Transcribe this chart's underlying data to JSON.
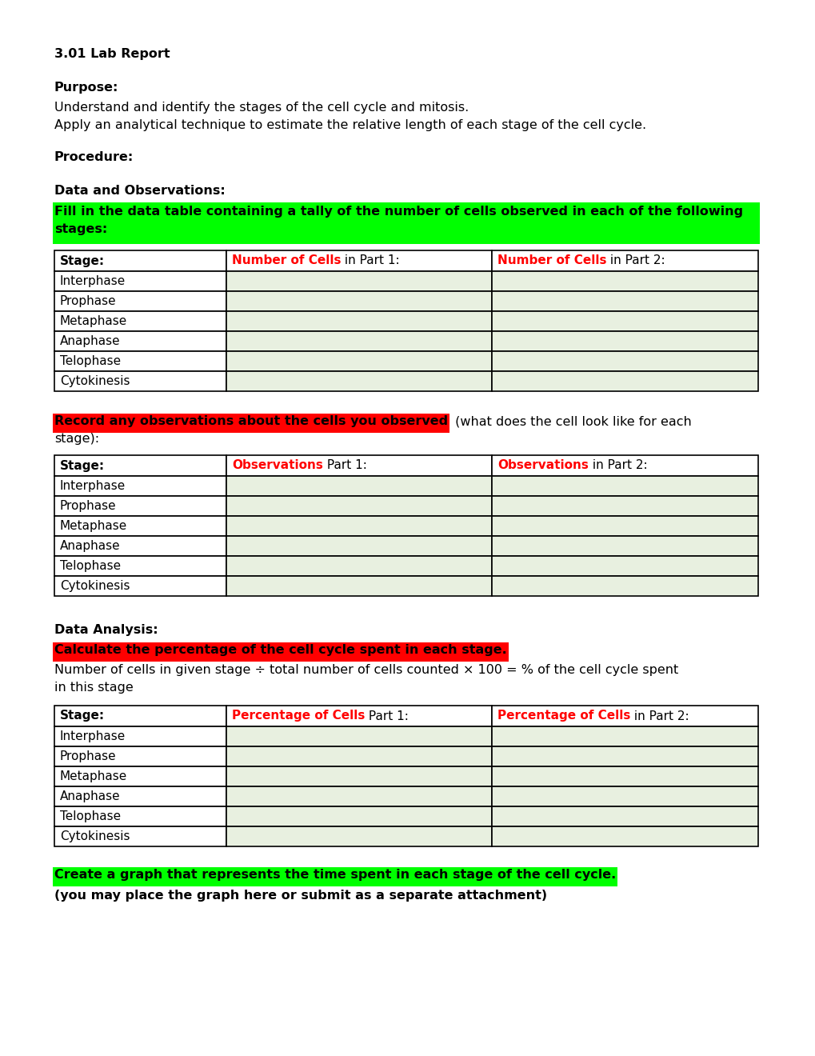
{
  "background_color": "#ffffff",
  "title": "3.01 Lab Report",
  "purpose_label": "Purpose:",
  "purpose_lines": [
    "Understand and identify the stages of the cell cycle and mitosis.",
    "Apply an analytical technique to estimate the relative length of each stage of the cell cycle."
  ],
  "procedure_label": "Procedure:",
  "data_obs_label": "Data and Observations:",
  "green_highlight_1_line1": "Fill in the data table containing a tally of the number of cells observed in each of the following",
  "green_highlight_1_line2": "stages:",
  "stages": [
    "Interphase",
    "Prophase",
    "Metaphase",
    "Anaphase",
    "Telophase",
    "Cytokinesis"
  ],
  "table_cell_bg": "#e8f0e0",
  "red_highlight_1_bold": "Record any observations about the cells you observed",
  "red_highlight_1_normal": " (what does the cell look like for each",
  "red_highlight_1_line2": "stage):",
  "data_analysis_label": "Data Analysis:",
  "red_highlight_2": "Calculate the percentage of the cell cycle spent in each stage.",
  "formula_line1": "Number of cells in given stage ÷ total number of cells counted × 100 = % of the cell cycle spent",
  "formula_line2": "in this stage",
  "green_highlight_2": "Create a graph that represents the time spent in each stage of the cell cycle.",
  "graph_note": "(you may place the graph here or submit as a separate attachment)"
}
